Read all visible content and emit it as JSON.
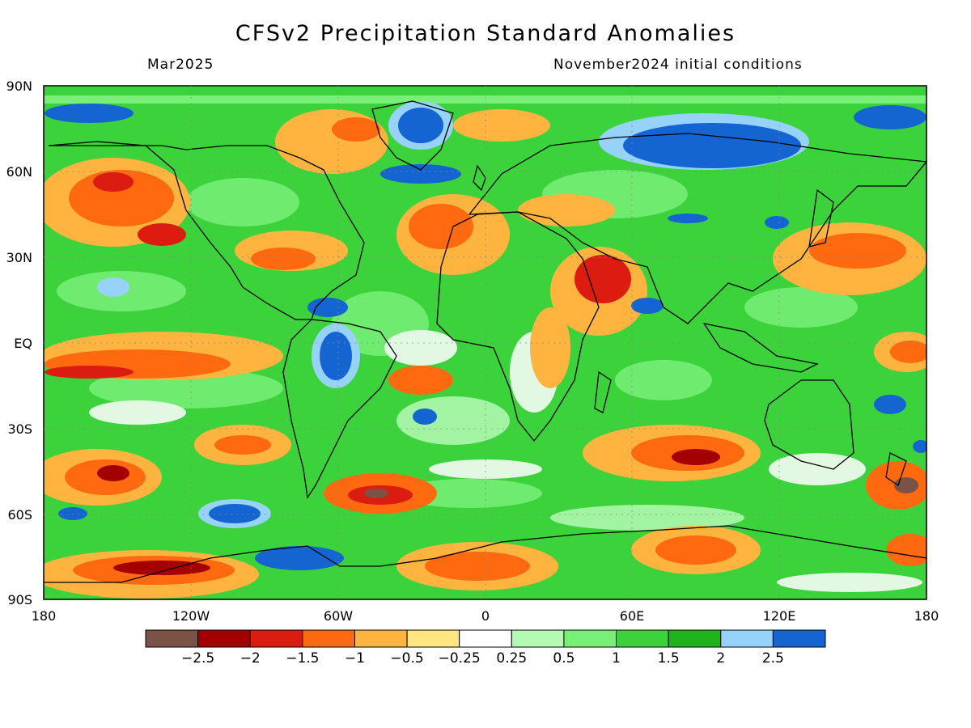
{
  "title": "CFSv2 Precipitation Standard Anomalies",
  "valid_month": "Mar2025",
  "initial_conditions": "November2024 initial conditions",
  "axes": {
    "lat_labels": [
      "90N",
      "60N",
      "30N",
      "EQ",
      "30S",
      "60S",
      "90S"
    ],
    "lon_labels": [
      "180",
      "120W",
      "60W",
      "0",
      "60E",
      "120E",
      "180"
    ]
  },
  "colorbar": {
    "colors": [
      "#7a5246",
      "#a50000",
      "#dc1c10",
      "#ff6a10",
      "#ffb440",
      "#ffe680",
      "#ffffff",
      "#b4fab4",
      "#78f078",
      "#3cd23c",
      "#1eb41e",
      "#96d2fa",
      "#1464d2"
    ],
    "labels": [
      "−2.5",
      "−2",
      "−1.5",
      "−1",
      "−0.5",
      "−0.25",
      "0.25",
      "0.5",
      "1",
      "1.5",
      "2",
      "2.5"
    ]
  },
  "colors": {
    "ocean_base": "#3cd23c",
    "coastline": "#000000"
  }
}
